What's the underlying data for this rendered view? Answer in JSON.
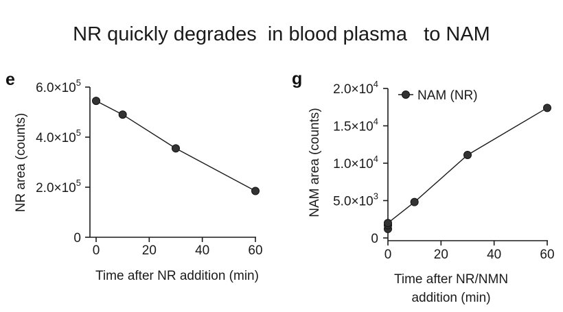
{
  "title": "NR quickly degrades  in blood plasma   to NAM",
  "chart_data": [
    {
      "type": "line",
      "panel_label": "e",
      "xlabel": [
        "Time after NR addition (min)"
      ],
      "ylabel": "NR area (counts)",
      "xlim": [
        0,
        60
      ],
      "ylim": [
        0,
        600000
      ],
      "x_ticks": [
        0,
        20,
        40,
        60
      ],
      "x_tick_labels": [
        "0",
        "20",
        "40",
        "60"
      ],
      "y_ticks": [
        0,
        200000,
        400000,
        600000
      ],
      "y_tick_labels": [
        {
          "base": "0",
          "exp": ""
        },
        {
          "base": "2.0×10",
          "exp": "5"
        },
        {
          "base": "4.0×10",
          "exp": "5"
        },
        {
          "base": "6.0×10",
          "exp": "5"
        }
      ],
      "series": [
        {
          "x": [
            0,
            10,
            30,
            60
          ],
          "values": [
            545000,
            490000,
            355000,
            185000
          ]
        }
      ]
    },
    {
      "type": "line",
      "panel_label": "g",
      "xlabel": [
        "Time after NR/NMN",
        "addition (min)"
      ],
      "ylabel": "NAM area (counts)",
      "xlim": [
        0,
        60
      ],
      "ylim": [
        0,
        20000
      ],
      "x_ticks": [
        0,
        20,
        40,
        60
      ],
      "x_tick_labels": [
        "0",
        "20",
        "40",
        "60"
      ],
      "y_ticks": [
        0,
        5000,
        10000,
        15000,
        20000
      ],
      "y_tick_labels": [
        {
          "base": "0",
          "exp": ""
        },
        {
          "base": "5.0×10",
          "exp": "3"
        },
        {
          "base": "1.0×10",
          "exp": "4"
        },
        {
          "base": "1.5×10",
          "exp": "4"
        },
        {
          "base": "2.0×10",
          "exp": "4"
        }
      ],
      "legend": "top-left",
      "series": [
        {
          "name": "NAM (NR)",
          "x": [
            0,
            0,
            0,
            10,
            30,
            60
          ],
          "values": [
            1200,
            1700,
            2000,
            4800,
            11100,
            17400
          ]
        }
      ]
    }
  ]
}
